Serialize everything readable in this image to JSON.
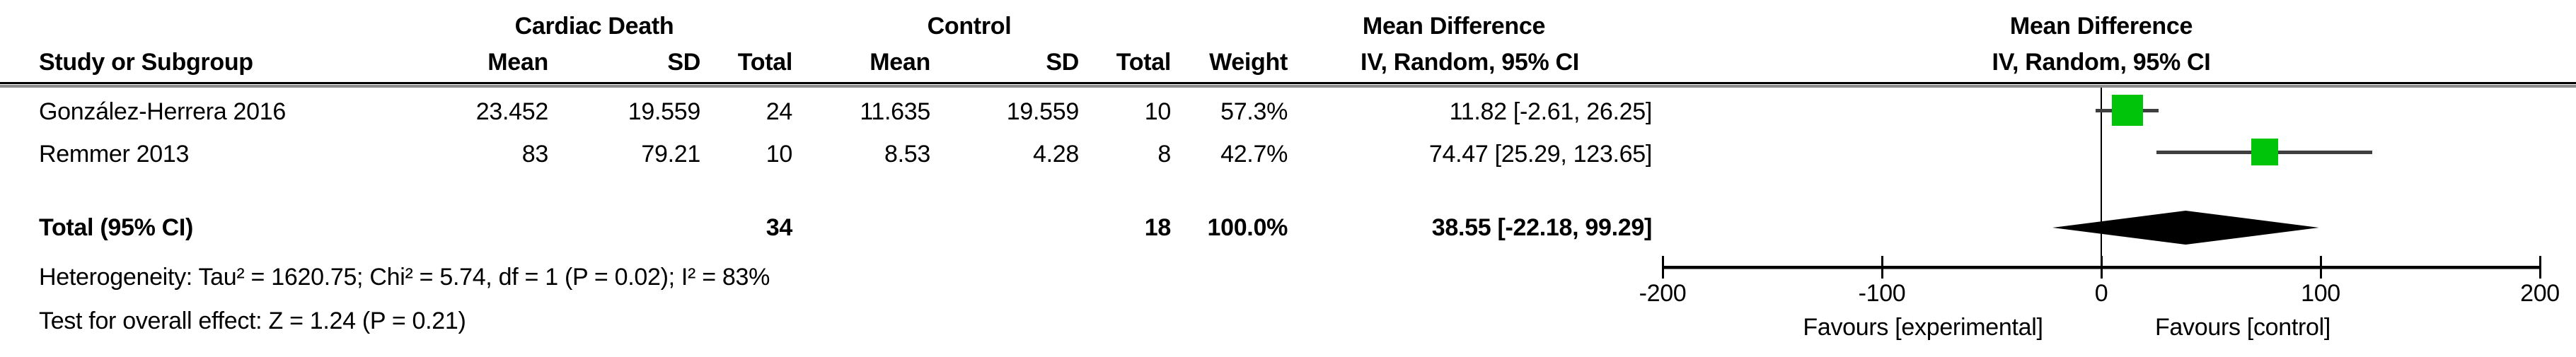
{
  "colors": {
    "marker_green": "#00c40a",
    "ci_line": "#3f3f3f",
    "diamond": "#000000",
    "text": "#000000",
    "background": "#ffffff"
  },
  "table": {
    "study_col_header": "Study or Subgroup",
    "groups": [
      {
        "label": "Cardiac Death",
        "columns": [
          "Mean",
          "SD",
          "Total"
        ]
      },
      {
        "label": "Control",
        "columns": [
          "Mean",
          "SD",
          "Total"
        ]
      }
    ],
    "weight_col_header": "Weight",
    "effect_col_header_line1": "Mean Difference",
    "effect_col_header_line2": "IV, Random, 95% CI",
    "rows": [
      {
        "study": "González-Herrera 2016",
        "exp_mean": "23.452",
        "exp_sd": "19.559",
        "exp_total": "24",
        "ctrl_mean": "11.635",
        "ctrl_sd": "19.559",
        "ctrl_total": "10",
        "weight": "57.3%",
        "effect": "11.82 [-2.61, 26.25]"
      },
      {
        "study": "Remmer 2013",
        "exp_mean": "83",
        "exp_sd": "79.21",
        "exp_total": "10",
        "ctrl_mean": "8.53",
        "ctrl_sd": "4.28",
        "ctrl_total": "8",
        "weight": "42.7%",
        "effect": "74.47 [25.29, 123.65]"
      }
    ],
    "total_row": {
      "label": "Total (95% CI)",
      "exp_total": "34",
      "ctrl_total": "18",
      "weight": "100.0%",
      "effect": "38.55 [-22.18, 99.29]"
    }
  },
  "footnotes": {
    "heterogeneity": "Heterogeneity: Tau² = 1620.75; Chi² = 5.74, df = 1 (P = 0.02); I² = 83%",
    "overall_effect": "Test for overall effect: Z = 1.24 (P = 0.21)"
  },
  "plot": {
    "header_line1": "Mean Difference",
    "header_line2": "IV, Random, 95% CI",
    "favours_left": "Favours [experimental]",
    "favours_right": "Favours [control]"
  },
  "chart_data": {
    "type": "scatter",
    "subtype": "forest-plot",
    "title": "Mean Difference, IV, Random, 95% CI",
    "studies": [
      {
        "name": "González-Herrera 2016",
        "md": 11.82,
        "ci_low": -2.61,
        "ci_high": 26.25,
        "weight_pct": 57.3
      },
      {
        "name": "Remmer 2013",
        "md": 74.47,
        "ci_low": 25.29,
        "ci_high": 123.65,
        "weight_pct": 42.7
      }
    ],
    "total": {
      "label": "Total (95% CI)",
      "md": 38.55,
      "ci_low": -22.18,
      "ci_high": 99.29
    },
    "axis": {
      "min": -200,
      "max": 200,
      "ticks": [
        -200,
        -100,
        0,
        100,
        200
      ],
      "zero_line": 0,
      "grid": false
    },
    "xlabel_left": "Favours [experimental]",
    "xlabel_right": "Favours [control]",
    "marker_color": "#00c40a"
  }
}
